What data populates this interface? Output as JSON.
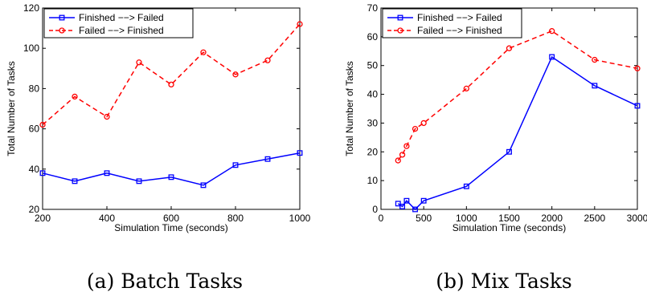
{
  "chart_data": [
    {
      "type": "line",
      "caption": "(a) Batch Tasks",
      "xlabel": "Simulation Time (seconds)",
      "ylabel": "Total Number of Tasks",
      "xlim": [
        200,
        1000
      ],
      "ylim": [
        20,
        120
      ],
      "xticks": [
        200,
        400,
        600,
        800,
        1000
      ],
      "yticks": [
        20,
        40,
        60,
        80,
        100,
        120
      ],
      "grid": false,
      "legend_position": "top-left",
      "series": [
        {
          "name": "Finished −−> Failed",
          "color": "#0000ff",
          "line_style": "solid",
          "marker": "square",
          "x": [
            200,
            300,
            400,
            500,
            600,
            700,
            800,
            900,
            1000
          ],
          "y": [
            38,
            34,
            38,
            34,
            36,
            32,
            42,
            45,
            48
          ]
        },
        {
          "name": "Failed −−> Finished",
          "color": "#ff0000",
          "line_style": "dashed",
          "marker": "circle",
          "x": [
            200,
            300,
            400,
            500,
            600,
            700,
            800,
            900,
            1000
          ],
          "y": [
            62,
            76,
            66,
            93,
            82,
            98,
            87,
            94,
            112
          ]
        }
      ]
    },
    {
      "type": "line",
      "caption": "(b) Mix Tasks",
      "xlabel": "Simulation Time (seconds)",
      "ylabel": "Total Number of Tasks",
      "xlim": [
        0,
        3000
      ],
      "ylim": [
        0,
        70
      ],
      "xticks": [
        0,
        500,
        1000,
        1500,
        2000,
        2500,
        3000
      ],
      "yticks": [
        0,
        10,
        20,
        30,
        40,
        50,
        60,
        70
      ],
      "grid": false,
      "legend_position": "top-left",
      "series": [
        {
          "name": "Finished −−> Failed",
          "color": "#0000ff",
          "line_style": "solid",
          "marker": "square",
          "x": [
            200,
            250,
            300,
            400,
            500,
            1000,
            1500,
            2000,
            2500,
            3000
          ],
          "y": [
            2,
            1,
            3,
            0,
            3,
            8,
            20,
            53,
            43,
            36
          ]
        },
        {
          "name": "Failed −−> Finished",
          "color": "#ff0000",
          "line_style": "dashed",
          "marker": "circle",
          "x": [
            200,
            250,
            300,
            400,
            500,
            1000,
            1500,
            2000,
            2500,
            3000
          ],
          "y": [
            17,
            19,
            22,
            28,
            30,
            42,
            56,
            62,
            52,
            49
          ]
        }
      ]
    }
  ]
}
